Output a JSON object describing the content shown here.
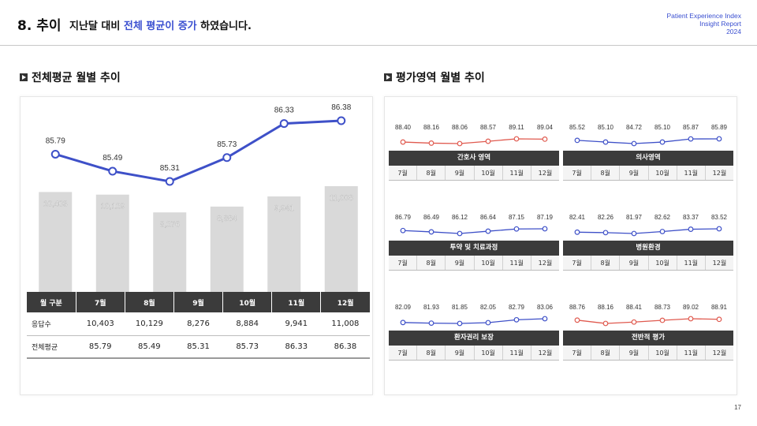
{
  "header": {
    "number": "8. 추이",
    "subtitle_pre": "지난달 대비 ",
    "subtitle_highlight": "전체 평균이 증가",
    "subtitle_post": " 하였습니다.",
    "report_line1": "Patient Experience Index",
    "report_line2": "Insight Report",
    "report_line3": "2024"
  },
  "sections": {
    "left_title": "전체평균 월별 추이",
    "right_title": "평가영역 월별 추이"
  },
  "colors": {
    "primary_line": "#3e50c8",
    "bar_fill": "#d9d9d9",
    "red_series": "#e05a4f",
    "blue_series": "#3e50c8",
    "dark_header": "#3b3b3b"
  },
  "chart_data": [
    {
      "type": "bar+line",
      "title": "전체평균 월별 추이",
      "categories": [
        "7월",
        "8월",
        "9월",
        "10월",
        "11월",
        "12월"
      ],
      "series": [
        {
          "name": "응답수",
          "type": "bar",
          "values": [
            10403,
            10129,
            8276,
            8884,
            9941,
            11008
          ],
          "labels": [
            "10,403",
            "10,129",
            "8,276",
            "8,884",
            "9,941",
            "11,008"
          ]
        },
        {
          "name": "전체평균",
          "type": "line",
          "values": [
            85.79,
            85.49,
            85.31,
            85.73,
            86.33,
            86.38
          ],
          "labels": [
            "85.79",
            "85.49",
            "85.31",
            "85.73",
            "86.33",
            "86.38"
          ]
        }
      ]
    },
    {
      "type": "line",
      "title": "간호사 영역",
      "color": "red",
      "categories": [
        "7월",
        "8월",
        "9월",
        "10월",
        "11월",
        "12월"
      ],
      "values": [
        88.4,
        88.16,
        88.06,
        88.57,
        89.11,
        89.04
      ],
      "labels": [
        "88.40",
        "88.16",
        "88.06",
        "88.57",
        "89.11",
        "89.04"
      ]
    },
    {
      "type": "line",
      "title": "의사영역",
      "color": "blue",
      "categories": [
        "7월",
        "8월",
        "9월",
        "10월",
        "11월",
        "12월"
      ],
      "values": [
        85.52,
        85.1,
        84.72,
        85.1,
        85.87,
        85.89
      ],
      "labels": [
        "85.52",
        "85.10",
        "84.72",
        "85.10",
        "85.87",
        "85.89"
      ]
    },
    {
      "type": "line",
      "title": "투약 및 치료과정",
      "color": "blue",
      "categories": [
        "7월",
        "8월",
        "9월",
        "10월",
        "11월",
        "12월"
      ],
      "values": [
        86.79,
        86.49,
        86.12,
        86.64,
        87.15,
        87.19
      ],
      "labels": [
        "86.79",
        "86.49",
        "86.12",
        "86.64",
        "87.15",
        "87.19"
      ]
    },
    {
      "type": "line",
      "title": "병원환경",
      "color": "blue",
      "categories": [
        "7월",
        "8월",
        "9월",
        "10월",
        "11월",
        "12월"
      ],
      "values": [
        82.41,
        82.26,
        81.97,
        82.62,
        83.37,
        83.52
      ],
      "labels": [
        "82.41",
        "82.26",
        "81.97",
        "82.62",
        "83.37",
        "83.52"
      ]
    },
    {
      "type": "line",
      "title": "환자권리 보장",
      "color": "blue",
      "categories": [
        "7월",
        "8월",
        "9월",
        "10월",
        "11월",
        "12월"
      ],
      "values": [
        82.09,
        81.93,
        81.85,
        82.05,
        82.79,
        83.06
      ],
      "labels": [
        "82.09",
        "81.93",
        "81.85",
        "82.05",
        "82.79",
        "83.06"
      ]
    },
    {
      "type": "line",
      "title": "전반적 평가",
      "color": "red",
      "categories": [
        "7월",
        "8월",
        "9월",
        "10월",
        "11월",
        "12월"
      ],
      "values": [
        88.76,
        88.16,
        88.41,
        88.73,
        89.02,
        88.91
      ],
      "labels": [
        "88.76",
        "88.16",
        "88.41",
        "88.73",
        "89.02",
        "88.91"
      ]
    }
  ],
  "table": {
    "header_label": "월 구분",
    "months": [
      "7월",
      "8월",
      "9월",
      "10월",
      "11월",
      "12월"
    ],
    "rows": [
      {
        "label": "응답수",
        "values": [
          "10,403",
          "10,129",
          "8,276",
          "8,884",
          "9,941",
          "11,008"
        ]
      },
      {
        "label": "전체평균",
        "values": [
          "85.79",
          "85.49",
          "85.31",
          "85.73",
          "86.33",
          "86.38"
        ]
      }
    ]
  },
  "page_number": "17"
}
